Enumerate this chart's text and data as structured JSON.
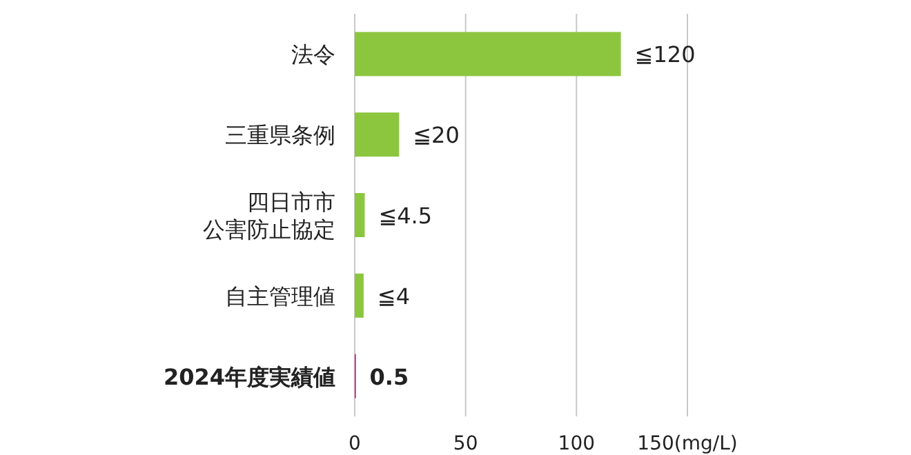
{
  "chart_data": {
    "type": "bar",
    "orientation": "horizontal",
    "categories": [
      "法令",
      "三重県条例",
      "四日市市公害防止協定",
      "自主管理値",
      "2024年度実績値"
    ],
    "values": [
      120,
      20,
      4.5,
      4,
      0.5
    ],
    "colors": [
      "#8cc63f",
      "#8cc63f",
      "#8cc63f",
      "#8cc63f",
      "#e4007f"
    ],
    "value_labels": [
      "≦120",
      "≦20",
      "≦4.5",
      "≦4",
      "0.5"
    ],
    "xlim": [
      0,
      150
    ],
    "xticks": [
      0,
      50,
      100,
      {
        "value": 150,
        "label": "150(mg/L)"
      }
    ],
    "grid": "x"
  }
}
